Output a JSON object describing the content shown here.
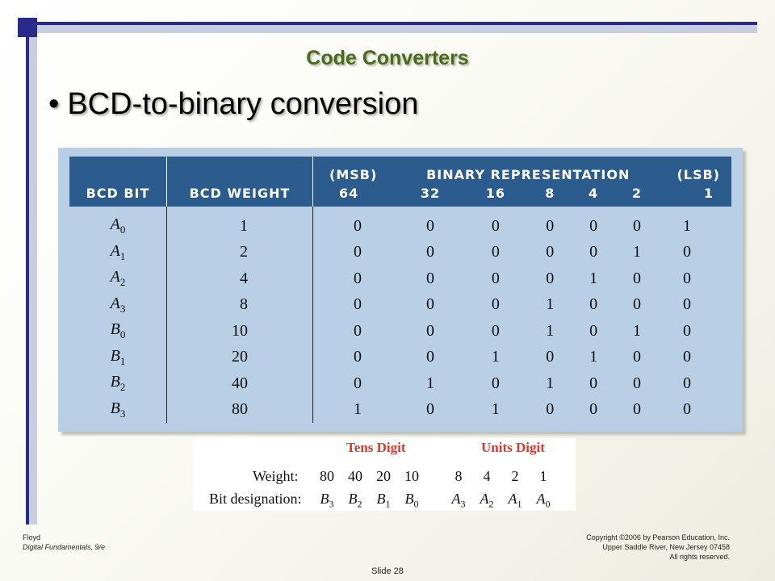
{
  "title": "Code Converters",
  "bullet": "BCD-to-binary conversion",
  "bullet_symbol": "•",
  "table": {
    "header_top": [
      "(MSB)",
      "BINARY REPRESENTATION",
      "(LSB)"
    ],
    "header_bottom": [
      "BCD BIT",
      "BCD WEIGHT",
      "64",
      "32",
      "16",
      "8",
      "4",
      "2",
      "1"
    ],
    "rows": [
      {
        "letter": "A",
        "sub": "0",
        "weight": "1",
        "bits": [
          "0",
          "0",
          "0",
          "0",
          "0",
          "0",
          "1"
        ]
      },
      {
        "letter": "A",
        "sub": "1",
        "weight": "2",
        "bits": [
          "0",
          "0",
          "0",
          "0",
          "0",
          "1",
          "0"
        ]
      },
      {
        "letter": "A",
        "sub": "2",
        "weight": "4",
        "bits": [
          "0",
          "0",
          "0",
          "0",
          "1",
          "0",
          "0"
        ]
      },
      {
        "letter": "A",
        "sub": "3",
        "weight": "8",
        "bits": [
          "0",
          "0",
          "0",
          "1",
          "0",
          "0",
          "0"
        ]
      },
      {
        "letter": "B",
        "sub": "0",
        "weight": "10",
        "bits": [
          "0",
          "0",
          "0",
          "1",
          "0",
          "1",
          "0"
        ]
      },
      {
        "letter": "B",
        "sub": "1",
        "weight": "20",
        "bits": [
          "0",
          "0",
          "1",
          "0",
          "1",
          "0",
          "0"
        ]
      },
      {
        "letter": "B",
        "sub": "2",
        "weight": "40",
        "bits": [
          "0",
          "1",
          "0",
          "1",
          "0",
          "0",
          "0"
        ]
      },
      {
        "letter": "B",
        "sub": "3",
        "weight": "80",
        "bits": [
          "1",
          "0",
          "1",
          "0",
          "0",
          "0",
          "0"
        ]
      }
    ]
  },
  "digits": {
    "tens_header": "Tens Digit",
    "units_header": "Units Digit",
    "weight_label": "Weight:",
    "weights": [
      "80",
      "40",
      "20",
      "10",
      "8",
      "4",
      "2",
      "1"
    ],
    "designation_label": "Bit designation:",
    "designations": [
      {
        "letter": "B",
        "sub": "3"
      },
      {
        "letter": "B",
        "sub": "2"
      },
      {
        "letter": "B",
        "sub": "1"
      },
      {
        "letter": "B",
        "sub": "0"
      },
      {
        "letter": "A",
        "sub": "3"
      },
      {
        "letter": "A",
        "sub": "2"
      },
      {
        "letter": "A",
        "sub": "1"
      },
      {
        "letter": "A",
        "sub": "0"
      }
    ]
  },
  "footer": {
    "author": "Floyd",
    "book": "Digital Fundamentals, 9/e",
    "copyright_lines": [
      "Copyright ©2006 by Pearson Education, Inc.",
      "Upper Saddle River, New Jersey 07458",
      "All rights reserved."
    ],
    "slide_label": "Slide 28"
  },
  "colors": {
    "title_green": "#4a6a1e",
    "frame_navy": "#2a2a8a",
    "table_header_blue": "#2c5c8e",
    "table_body_blue": "#b9cfe6",
    "digit_header_red": "#d63a2e"
  }
}
